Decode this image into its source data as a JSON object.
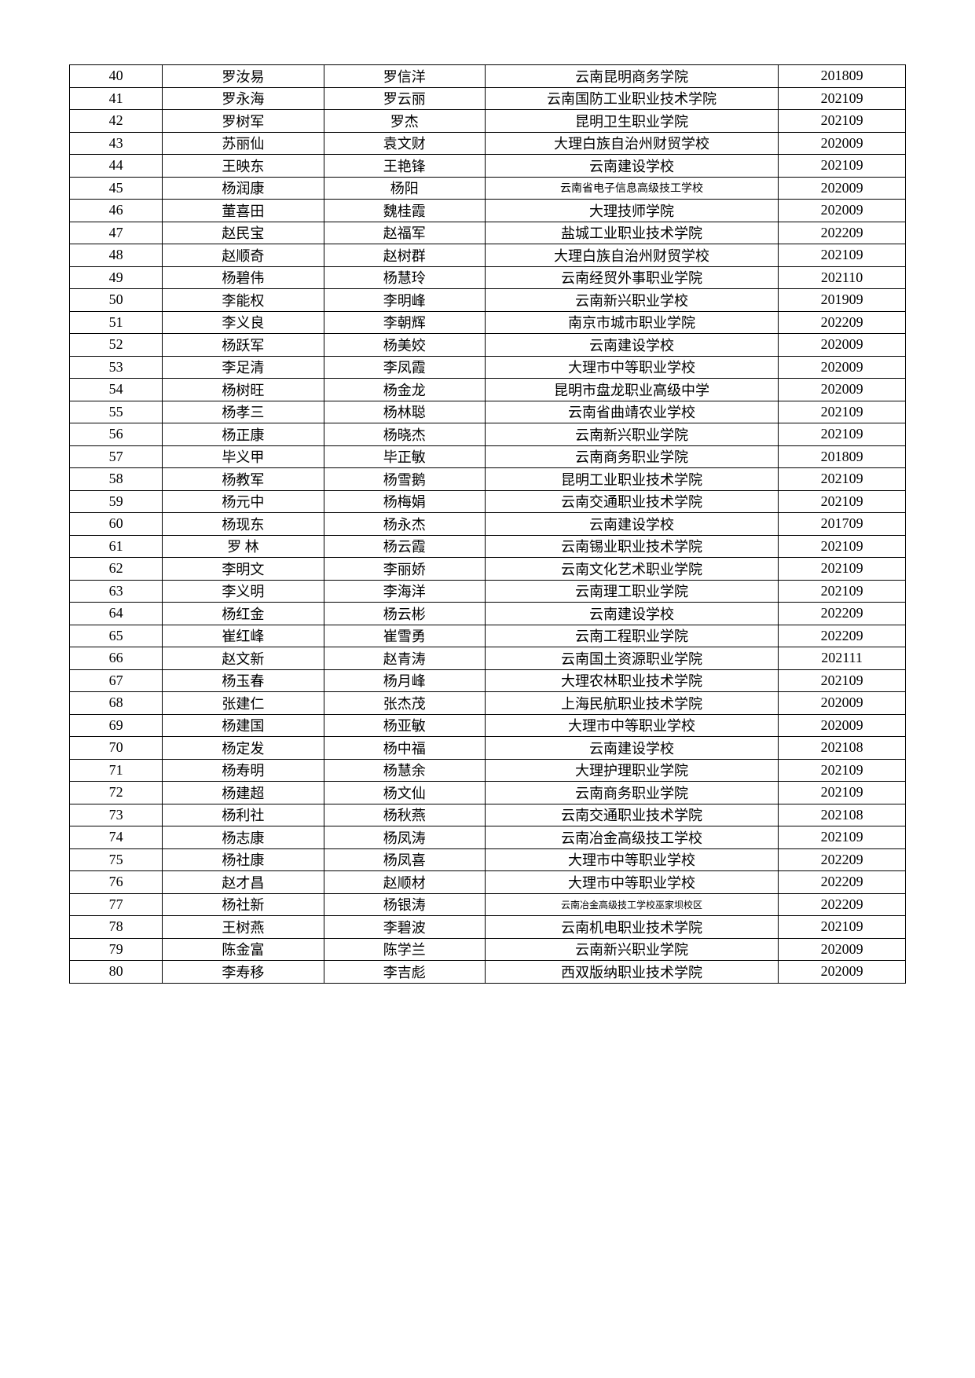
{
  "table": {
    "background_color": "#ffffff",
    "border_color": "#000000",
    "text_color": "#000000",
    "base_fontsize": 18,
    "small_fontsize": 14,
    "smaller_fontsize": 12,
    "column_widths_percent": [
      9.5,
      16.5,
      16.5,
      30,
      13
    ],
    "rows": [
      {
        "n": "40",
        "a": "罗汝易",
        "b": "罗信洋",
        "c": "云南昆明商务学院",
        "d": "201809"
      },
      {
        "n": "41",
        "a": "罗永海",
        "b": "罗云丽",
        "c": "云南国防工业职业技术学院",
        "d": "202109"
      },
      {
        "n": "42",
        "a": "罗树军",
        "b": "罗杰",
        "c": "昆明卫生职业学院",
        "d": "202109"
      },
      {
        "n": "43",
        "a": "苏丽仙",
        "b": "袁文财",
        "c": "大理白族自治州财贸学校",
        "d": "202009"
      },
      {
        "n": "44",
        "a": "王映东",
        "b": "王艳锋",
        "c": "云南建设学校",
        "d": "202109"
      },
      {
        "n": "45",
        "a": "杨润康",
        "b": "杨阳",
        "c": "云南省电子信息高级技工学校",
        "c_small": true,
        "d": "202009"
      },
      {
        "n": "46",
        "a": "董喜田",
        "b": "魏桂霞",
        "c": "大理技师学院",
        "d": "202009"
      },
      {
        "n": "47",
        "a": "赵民宝",
        "b": "赵福军",
        "c": "盐城工业职业技术学院",
        "d": "202209"
      },
      {
        "n": "48",
        "a": "赵顺奇",
        "b": "赵树群",
        "c": "大理白族自治州财贸学校",
        "d": "202109"
      },
      {
        "n": "49",
        "a": "杨碧伟",
        "b": "杨慧玲",
        "c": "云南经贸外事职业学院",
        "d": "202110"
      },
      {
        "n": "50",
        "a": "李能权",
        "b": "李明峰",
        "c": "云南新兴职业学校",
        "d": "201909"
      },
      {
        "n": "51",
        "a": "李义良",
        "b": "李朝辉",
        "c": "南京市城市职业学院",
        "d": "202209"
      },
      {
        "n": "52",
        "a": "杨跃军",
        "b": "杨美姣",
        "c": "云南建设学校",
        "d": "202009"
      },
      {
        "n": "53",
        "a": "李足清",
        "b": "李凤霞",
        "c": "大理市中等职业学校",
        "d": "202009"
      },
      {
        "n": "54",
        "a": "杨树旺",
        "b": "杨金龙",
        "c": "昆明市盘龙职业高级中学",
        "d": "202009"
      },
      {
        "n": "55",
        "a": "杨孝三",
        "b": "杨林聪",
        "c": "云南省曲靖农业学校",
        "d": "202109"
      },
      {
        "n": "56",
        "a": "杨正康",
        "b": "杨晓杰",
        "c": "云南新兴职业学院",
        "d": "202109"
      },
      {
        "n": "57",
        "a": "毕义甲",
        "b": "毕正敏",
        "c": "云南商务职业学院",
        "d": "201809"
      },
      {
        "n": "58",
        "a": "杨教军",
        "b": "杨雪鹅",
        "c": "昆明工业职业技术学院",
        "d": "202109"
      },
      {
        "n": "59",
        "a": "杨元中",
        "b": "杨梅娟",
        "c": "云南交通职业技术学院",
        "d": "202109"
      },
      {
        "n": "60",
        "a": "杨现东",
        "b": "杨永杰",
        "c": "云南建设学校",
        "d": "201709"
      },
      {
        "n": "61",
        "a": "罗 林",
        "b": "杨云霞",
        "c": "云南锡业职业技术学院",
        "d": "202109"
      },
      {
        "n": "62",
        "a": "李明文",
        "b": "李丽娇",
        "c": "云南文化艺术职业学院",
        "d": "202109"
      },
      {
        "n": "63",
        "a": "李义明",
        "b": "李海洋",
        "c": "云南理工职业学院",
        "d": "202109"
      },
      {
        "n": "64",
        "a": "杨红金",
        "b": "杨云彬",
        "c": "云南建设学校",
        "d": "202209"
      },
      {
        "n": "65",
        "a": "崔红峰",
        "b": "崔雪勇",
        "c": "云南工程职业学院",
        "d": "202209"
      },
      {
        "n": "66",
        "a": "赵文新",
        "b": "赵青涛",
        "c": "云南国土资源职业学院",
        "d": "202111"
      },
      {
        "n": "67",
        "a": "杨玉春",
        "b": "杨月峰",
        "c": "大理农林职业技术学院",
        "d": "202109"
      },
      {
        "n": "68",
        "a": "张建仁",
        "b": "张杰茂",
        "c": "上海民航职业技术学院",
        "d": "202009"
      },
      {
        "n": "69",
        "a": "杨建国",
        "b": "杨亚敏",
        "c": "大理市中等职业学校",
        "d": "202009"
      },
      {
        "n": "70",
        "a": "杨定发",
        "b": "杨中福",
        "c": "云南建设学校",
        "d": "202108"
      },
      {
        "n": "71",
        "a": "杨寿明",
        "b": "杨慧余",
        "c": "大理护理职业学院",
        "d": "202109"
      },
      {
        "n": "72",
        "a": "杨建超",
        "b": "杨文仙",
        "c": "云南商务职业学院",
        "d": "202109"
      },
      {
        "n": "73",
        "a": "杨利社",
        "b": "杨秋燕",
        "c": "云南交通职业技术学院",
        "d": "202108"
      },
      {
        "n": "74",
        "a": "杨志康",
        "b": "杨凤涛",
        "c": "云南冶金高级技工学校",
        "d": "202109"
      },
      {
        "n": "75",
        "a": "杨社康",
        "b": "杨凤喜",
        "c": "大理市中等职业学校",
        "d": "202209"
      },
      {
        "n": "76",
        "a": "赵才昌",
        "b": "赵顺材",
        "c": "大理市中等职业学校",
        "d": "202209"
      },
      {
        "n": "77",
        "a": "杨社新",
        "b": "杨银涛",
        "c": "云南冶金高级技工学校巫家坝校区",
        "c_smaller": true,
        "d": "202209"
      },
      {
        "n": "78",
        "a": "王树燕",
        "b": "李碧波",
        "c": "云南机电职业技术学院",
        "d": "202109"
      },
      {
        "n": "79",
        "a": "陈金富",
        "b": "陈学兰",
        "c": "云南新兴职业学院",
        "d": "202009"
      },
      {
        "n": "80",
        "a": "李寿移",
        "b": "李吉彪",
        "c": "西双版纳职业技术学院",
        "d": "202009"
      }
    ]
  }
}
